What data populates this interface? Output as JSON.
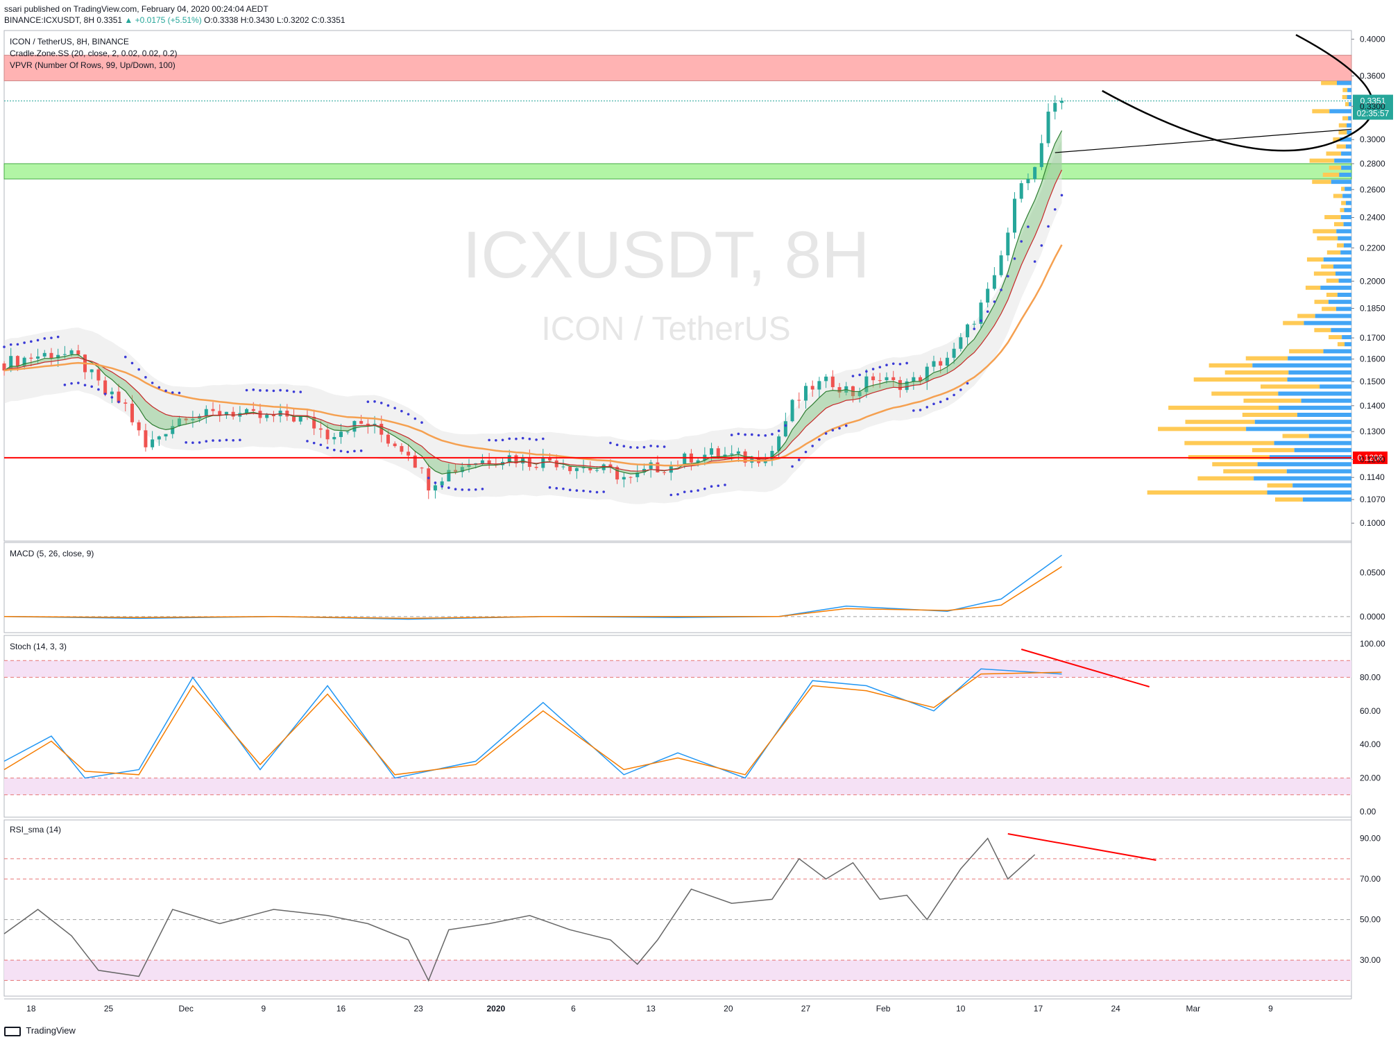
{
  "header": {
    "publisher": "ssari published on TradingView.com, February 04, 2020 00:24:04 AEDT",
    "symbol_line": "BINANCE:ICXUSDT, 8H",
    "last": "0.3351",
    "change": "▲ +0.0175 (+5.51%)",
    "o": "O:0.3338",
    "h": "H:0.3430",
    "l": "L:0.3202",
    "c": "C:0.3351"
  },
  "legends": {
    "main_title": "ICON / TetherUS, 8H, BINANCE",
    "cradle": "Cradle.Zone.SS (20, close, 2, 0.02, 0.02, 0.2)",
    "vpvr": "VPVR (Number Of Rows, 99, Up/Down, 100)",
    "macd": "MACD (5, 26, close, 9)",
    "stoch": "Stoch (14, 3, 3)",
    "rsi": "RSI_sma (14)"
  },
  "watermark": {
    "symbol": "ICXUSDT, 8H",
    "name": "ICON / TetherUS"
  },
  "footer": {
    "brand": "TradingView"
  },
  "colors": {
    "up": "#26a69a",
    "down": "#ef5350",
    "support": "#ff0000",
    "resistance_zone": "#ffb3b3",
    "support_zone": "#b2f5a5",
    "vp_up": "#42a5f5",
    "vp_down": "#ffca55",
    "psar": "#3a3ad6",
    "ema_slow": "#f5a050"
  },
  "chart_data": [
    {
      "type": "candlestick",
      "name": "ICXUSDT 8H price",
      "yscale": "log",
      "ylim": [
        0.095,
        0.41
      ],
      "y_ticks": [
        "0.4000",
        "0.3600",
        "0.3300",
        "0.3000",
        "0.2800",
        "0.2600",
        "0.2400",
        "0.2200",
        "0.2000",
        "0.1850",
        "0.1700",
        "0.1600",
        "0.1500",
        "0.1400",
        "0.1300",
        "0.1200",
        "0.1140",
        "0.1070",
        "0.1000"
      ],
      "x_ticks": [
        "18",
        "25",
        "Dec",
        "9",
        "16",
        "23",
        "2020",
        "6",
        "13",
        "20",
        "27",
        "Feb",
        "10",
        "17",
        "24",
        "Mar",
        "9"
      ],
      "close_path": [
        [
          0,
          0.158
        ],
        [
          4,
          0.161
        ],
        [
          8,
          0.163
        ],
        [
          11,
          0.16
        ],
        [
          15,
          0.145
        ],
        [
          18,
          0.14
        ],
        [
          21,
          0.124
        ],
        [
          24,
          0.131
        ],
        [
          27,
          0.137
        ],
        [
          30,
          0.136
        ],
        [
          33,
          0.138
        ],
        [
          36,
          0.136
        ],
        [
          39,
          0.135
        ],
        [
          42,
          0.136
        ],
        [
          45,
          0.134
        ],
        [
          48,
          0.129
        ],
        [
          51,
          0.132
        ],
        [
          54,
          0.133
        ],
        [
          57,
          0.127
        ],
        [
          60,
          0.123
        ],
        [
          63,
          0.112
        ],
        [
          66,
          0.116
        ],
        [
          69,
          0.119
        ],
        [
          72,
          0.12
        ],
        [
          75,
          0.121
        ],
        [
          78,
          0.119
        ],
        [
          81,
          0.12
        ],
        [
          84,
          0.118
        ],
        [
          87,
          0.117
        ],
        [
          90,
          0.116
        ],
        [
          93,
          0.113
        ],
        [
          96,
          0.117
        ],
        [
          99,
          0.118
        ],
        [
          102,
          0.121
        ],
        [
          105,
          0.122
        ],
        [
          108,
          0.121
        ],
        [
          111,
          0.12
        ],
        [
          114,
          0.123
        ],
        [
          117,
          0.14
        ],
        [
          120,
          0.148
        ],
        [
          123,
          0.15
        ],
        [
          126,
          0.145
        ],
        [
          129,
          0.152
        ],
        [
          132,
          0.149
        ],
        [
          135,
          0.15
        ],
        [
          138,
          0.157
        ],
        [
          141,
          0.163
        ],
        [
          144,
          0.18
        ],
        [
          147,
          0.2
        ],
        [
          149,
          0.23
        ],
        [
          151,
          0.27
        ],
        [
          153,
          0.275
        ],
        [
          155,
          0.32
        ],
        [
          157,
          0.335
        ]
      ],
      "last_price": 0.3351,
      "last_label": "0.3351",
      "countdown": "02:35:57",
      "support_line": 0.1206,
      "support_label": "0.1206",
      "resistance_zone": [
        0.355,
        0.382
      ],
      "support_zone": [
        0.268,
        0.28
      ],
      "annotation": "cup curve projected into Feb-Mar"
    },
    {
      "type": "line",
      "name": "MACD",
      "y_ticks": [
        "0.0500",
        "0.0000"
      ],
      "ylim": [
        -0.012,
        0.075
      ],
      "series": [
        {
          "name": "MACD",
          "values": [
            [
              0,
              0.0
            ],
            [
              20,
              -0.002
            ],
            [
              40,
              0.0
            ],
            [
              60,
              -0.003
            ],
            [
              80,
              0.0
            ],
            [
              100,
              -0.001
            ],
            [
              115,
              0.0
            ],
            [
              125,
              0.012
            ],
            [
              140,
              0.006
            ],
            [
              148,
              0.02
            ],
            [
              157,
              0.07
            ]
          ]
        },
        {
          "name": "Signal",
          "values": [
            [
              0,
              0.0
            ],
            [
              20,
              -0.001
            ],
            [
              40,
              0.0
            ],
            [
              60,
              -0.002
            ],
            [
              80,
              0.0
            ],
            [
              100,
              0.0
            ],
            [
              115,
              0.0
            ],
            [
              125,
              0.009
            ],
            [
              140,
              0.007
            ],
            [
              148,
              0.013
            ],
            [
              157,
              0.057
            ]
          ]
        }
      ]
    },
    {
      "type": "line",
      "name": "Stoch",
      "y_ticks": [
        "100.00",
        "80.00",
        "60.00",
        "40.00",
        "20.00",
        "0.00"
      ],
      "ylim": [
        0,
        100
      ],
      "bands": [
        20,
        80,
        90,
        10
      ],
      "series": [
        {
          "name": "K",
          "values": [
            [
              0,
              30
            ],
            [
              7,
              45
            ],
            [
              12,
              20
            ],
            [
              20,
              25
            ],
            [
              28,
              80
            ],
            [
              38,
              25
            ],
            [
              48,
              75
            ],
            [
              58,
              20
            ],
            [
              70,
              30
            ],
            [
              80,
              65
            ],
            [
              92,
              22
            ],
            [
              100,
              35
            ],
            [
              110,
              20
            ],
            [
              120,
              78
            ],
            [
              128,
              75
            ],
            [
              138,
              60
            ],
            [
              145,
              85
            ],
            [
              157,
              82
            ]
          ]
        },
        {
          "name": "D",
          "values": [
            [
              0,
              25
            ],
            [
              7,
              42
            ],
            [
              12,
              24
            ],
            [
              20,
              22
            ],
            [
              28,
              75
            ],
            [
              38,
              28
            ],
            [
              48,
              70
            ],
            [
              58,
              22
            ],
            [
              70,
              28
            ],
            [
              80,
              60
            ],
            [
              92,
              25
            ],
            [
              100,
              32
            ],
            [
              110,
              22
            ],
            [
              120,
              75
            ],
            [
              128,
              72
            ],
            [
              138,
              62
            ],
            [
              145,
              82
            ],
            [
              157,
              83
            ]
          ]
        }
      ]
    },
    {
      "type": "line",
      "name": "RSI_sma",
      "y_ticks": [
        "90.00",
        "70.00",
        "50.00",
        "30.00"
      ],
      "ylim": [
        15,
        95
      ],
      "bands": [
        80,
        70,
        50,
        30,
        20
      ],
      "series": [
        {
          "name": "RSI",
          "values": [
            [
              0,
              43
            ],
            [
              5,
              55
            ],
            [
              10,
              42
            ],
            [
              14,
              25
            ],
            [
              20,
              22
            ],
            [
              25,
              55
            ],
            [
              32,
              48
            ],
            [
              40,
              55
            ],
            [
              48,
              52
            ],
            [
              54,
              48
            ],
            [
              60,
              40
            ],
            [
              63,
              20
            ],
            [
              66,
              45
            ],
            [
              72,
              48
            ],
            [
              78,
              52
            ],
            [
              84,
              45
            ],
            [
              90,
              40
            ],
            [
              94,
              28
            ],
            [
              97,
              40
            ],
            [
              102,
              65
            ],
            [
              108,
              58
            ],
            [
              114,
              60
            ],
            [
              118,
              80
            ],
            [
              122,
              70
            ],
            [
              126,
              78
            ],
            [
              130,
              60
            ],
            [
              134,
              62
            ],
            [
              137,
              50
            ],
            [
              142,
              75
            ],
            [
              146,
              90
            ],
            [
              149,
              70
            ],
            [
              153,
              82
            ]
          ]
        }
      ]
    }
  ]
}
